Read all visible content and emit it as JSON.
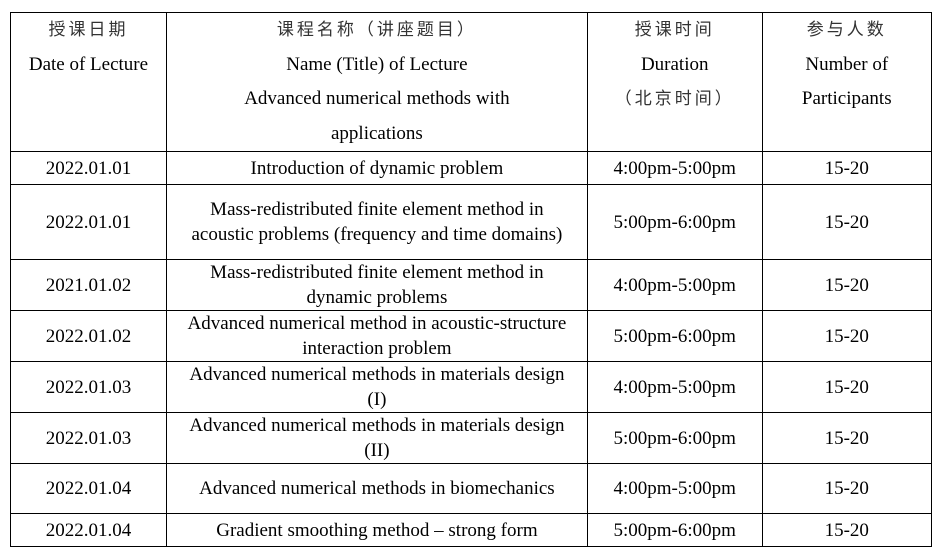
{
  "header": {
    "date": {
      "cn": "授课日期",
      "en": "Date of Lecture"
    },
    "name": {
      "cn": "课程名称（讲座题目）",
      "en": "Name (Title) of Lecture",
      "course": "Advanced numerical methods with",
      "course2": "applications"
    },
    "duration": {
      "cn": "授课时间",
      "en": "Duration",
      "note": "（北京时间）"
    },
    "participants": {
      "cn": "参与人数",
      "en": "Number of",
      "en2": "Participants"
    }
  },
  "rows": [
    {
      "date": "2022.01.01",
      "title": "Introduction of dynamic problem",
      "time": "4:00pm-5:00pm",
      "num": "15-20"
    },
    {
      "date": "2022.01.01",
      "title": "Mass-redistributed finite element method in acoustic problems (frequency and time domains)",
      "time": "5:00pm-6:00pm",
      "num": "15-20"
    },
    {
      "date": "2021.01.02",
      "title": "Mass-redistributed finite element method in dynamic problems",
      "time": "4:00pm-5:00pm",
      "num": "15-20"
    },
    {
      "date": "2022.01.02",
      "title": "Advanced numerical method in acoustic-structure interaction problem",
      "time": "5:00pm-6:00pm",
      "num": "15-20"
    },
    {
      "date": "2022.01.03",
      "title": "Advanced numerical methods in materials design (I)",
      "time": "4:00pm-5:00pm",
      "num": "15-20"
    },
    {
      "date": "2022.01.03",
      "title": "Advanced numerical methods in materials design (II)",
      "time": "5:00pm-6:00pm",
      "num": "15-20"
    },
    {
      "date": "2022.01.04",
      "title": "Advanced numerical methods in biomechanics",
      "time": "4:00pm-5:00pm",
      "num": "15-20"
    },
    {
      "date": "2022.01.04",
      "title": "Gradient smoothing method – strong form",
      "time": "5:00pm-6:00pm",
      "num": "15-20"
    }
  ]
}
